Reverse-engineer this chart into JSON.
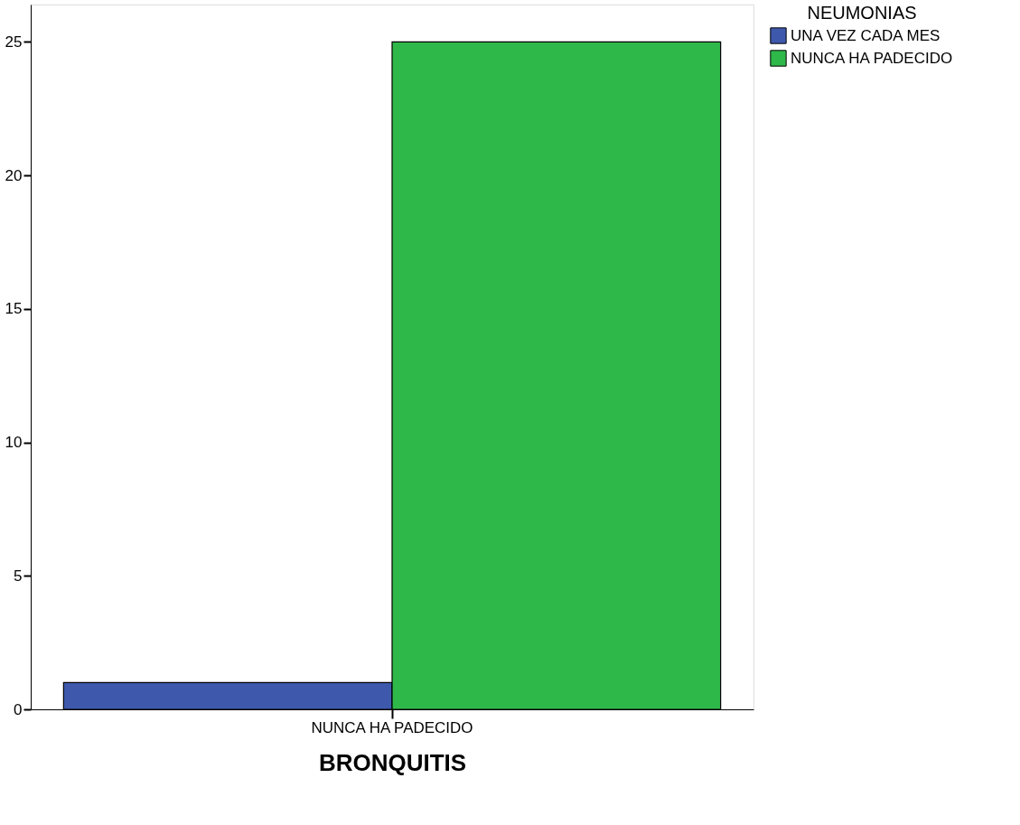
{
  "chart_data": {
    "type": "bar",
    "xlabel": "BRONQUITIS",
    "legend_title": "NEUMONIAS",
    "categories": [
      "NUNCA HA PADECIDO"
    ],
    "series": [
      {
        "name": "UNA VEZ CADA MES",
        "color": "#3e58ac",
        "values": [
          1
        ]
      },
      {
        "name": "NUNCA HA PADECIDO",
        "color": "#2fb84a",
        "values": [
          25
        ]
      }
    ],
    "ylim": [
      0,
      26.4
    ],
    "yticks": [
      0,
      5,
      10,
      15,
      20,
      25
    ],
    "grid": false,
    "legend": "top right"
  }
}
